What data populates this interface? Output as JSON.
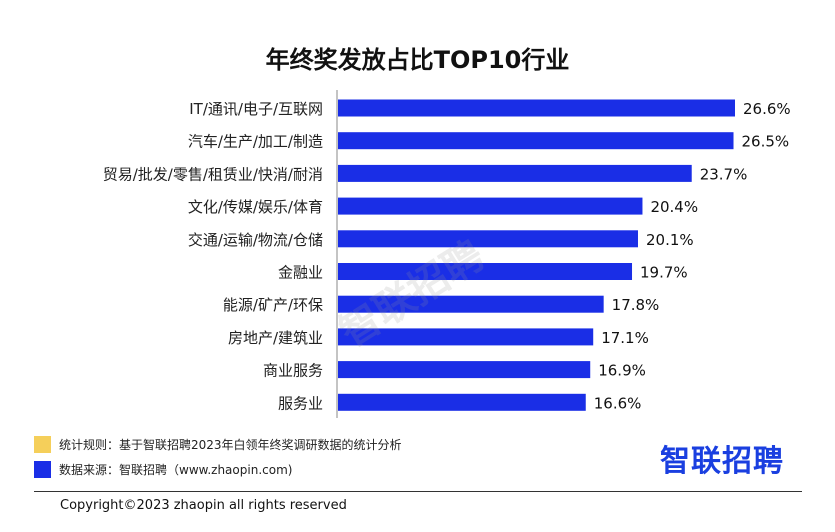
{
  "chart_data": {
    "type": "bar",
    "orientation": "horizontal",
    "title": "年终奖发放占比TOP10行业",
    "categories": [
      "IT/通讯/电子/互联网",
      "汽车/生产/加工/制造",
      "贸易/批发/零售/租赁业/快消/耐消",
      "文化/传媒/娱乐/体育",
      "交通/运输/物流/仓储",
      "金融业",
      "能源/矿产/环保",
      "房地产/建筑业",
      "商业服务",
      "服务业"
    ],
    "values": [
      26.6,
      26.5,
      23.7,
      20.4,
      20.1,
      19.7,
      17.8,
      17.1,
      16.9,
      16.6
    ],
    "value_labels": [
      "26.6%",
      "26.5%",
      "23.7%",
      "20.4%",
      "20.1%",
      "19.7%",
      "17.8%",
      "17.1%",
      "16.9%",
      "16.6%"
    ],
    "xlim": [
      0,
      26.6
    ],
    "bar_color": "#1a2ee6",
    "grid": false
  },
  "notes": [
    {
      "color": "#f5cf5a",
      "text": "统计规则：基于智联招聘2023年白领年终奖调研数据的统计分析"
    },
    {
      "color": "#1a2ee6",
      "text": "数据来源：智联招聘（www.zhaopin.com)"
    }
  ],
  "logo": "智联招聘",
  "watermark": "智联招聘",
  "copyright": "Copyright©2023 zhaopin all rights reserved"
}
